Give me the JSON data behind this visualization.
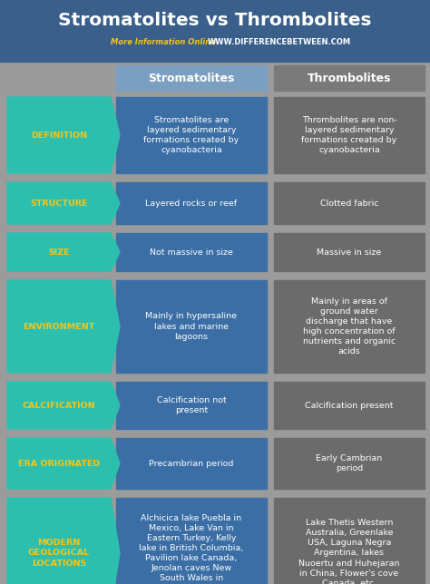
{
  "title": "Stromatolites vs Thrombolites",
  "subtitle_left": "More Information Online",
  "subtitle_right": "WWW.DIFFERENCEBETWEEN.COM",
  "col1_header": "Stromatolites",
  "col2_header": "Thrombolites",
  "bg_color": "#9b9b9b",
  "header_bg_color": "#3a5f8a",
  "title_color": "#ffffff",
  "subtitle_left_color": "#f5c518",
  "subtitle_right_color": "#ffffff",
  "arrow_color": "#2dbfad",
  "label_color": "#f5c518",
  "cell1_color": "#3a6ea5",
  "cell2_color": "#6b6b6b",
  "col1_header_color": "#7a9fc0",
  "col2_header_color": "#7a7a7a",
  "cell_text_color": "#ffffff",
  "rows": [
    {
      "label": "DEFINITION",
      "col1": "Stromatolites are\nlayered sedimentary\nformations created by\ncyanobacteria",
      "col2": "Thrombolites are non-\nlayered sedimentary\nformations created by\ncyanobacteria"
    },
    {
      "label": "STRUCTURE",
      "col1": "Layered rocks or reef",
      "col2": "Clotted fabric"
    },
    {
      "label": "SIZE",
      "col1": "Not massive in size",
      "col2": "Massive in size"
    },
    {
      "label": "ENVIRONMENT",
      "col1": "Mainly in hypersaline\nlakes and marine\nlagoons",
      "col2": "Mainly in areas of\nground water\ndischarge that have\nhigh concentration of\nnutrients and organic\nacids"
    },
    {
      "label": "CALCIFICATION",
      "col1": "Calcification not\npresent",
      "col2": "Calcification present"
    },
    {
      "label": "ERA ORIGINATED",
      "col1": "Precambrian period",
      "col2": "Early Cambrian\nperiod"
    },
    {
      "label": "MODERN\nGEOLOGICAL\nLOCATIONS",
      "col1": "Alchicica lake Puebla in\nMexico, Lake Van in\nEastern Turkey, Kelly\nlake in British Columbia,\nPavilion lake Canada,\nJenolan caves New\nSouth Wales in\nAustralia, etc.",
      "col2": "Lake Thetis Western\nAustralia, Greenlake\nUSA, Laguna Negra\nArgentina, lakes\nNuoertu and Huhejaran\nin China, Flower's cove\nCanada, etc."
    }
  ]
}
